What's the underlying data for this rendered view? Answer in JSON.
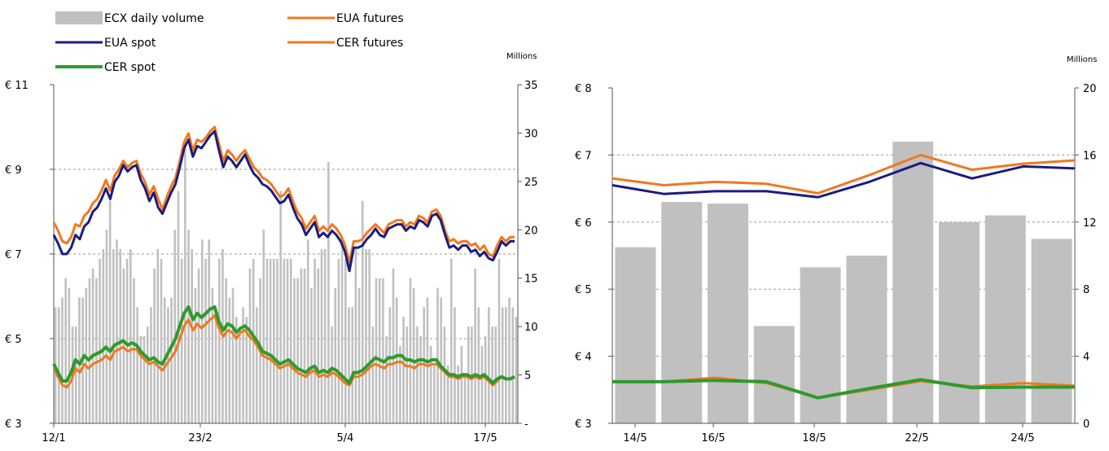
{
  "legend": [
    {
      "label": "ECX daily volume",
      "kind": "bar",
      "color": "#c0c0c0"
    },
    {
      "label": "EUA futures",
      "kind": "line",
      "color": "#f07820"
    },
    {
      "label": "EUA spot",
      "kind": "line",
      "color": "#1c1c80"
    },
    {
      "label": "CER futures",
      "kind": "line",
      "color": "#f07820"
    },
    {
      "label": "CER spot",
      "kind": "line",
      "color": "#2e9a2e"
    }
  ],
  "chart_data": [
    {
      "type": "bar+line",
      "title": "",
      "x_tick_labels": [
        "12/1",
        "23/2",
        "5/4",
        "17/5"
      ],
      "y_left": {
        "ticks": [
          "€ 3",
          "€ 5",
          "€ 7",
          "€ 9",
          "€ 11"
        ],
        "range": [
          3,
          11
        ]
      },
      "y_right": {
        "unit_label": "Millions",
        "ticks": [
          "-",
          "5",
          "10",
          "15",
          "20",
          "25",
          "30",
          "35"
        ],
        "range": [
          0,
          35
        ]
      },
      "grid": "horizontal-dashed",
      "volume_millions": [
        12,
        12,
        13,
        15,
        14,
        10,
        10,
        13,
        13,
        14,
        15,
        16,
        15,
        17,
        18,
        20,
        23,
        18,
        19,
        18,
        16,
        17,
        18,
        15,
        12,
        9,
        9,
        10,
        12,
        16,
        18,
        17,
        13,
        12,
        13,
        20,
        24,
        17,
        29,
        20,
        18,
        14,
        16,
        19,
        17,
        19,
        14,
        12,
        17,
        18,
        15,
        13,
        14,
        11,
        10,
        12,
        11,
        16,
        17,
        12,
        15,
        20,
        17,
        17,
        17,
        17,
        24,
        17,
        17,
        17,
        15,
        15,
        16,
        16,
        19,
        14,
        17,
        16,
        18,
        18,
        27,
        10,
        14,
        17,
        19,
        17,
        12,
        12,
        18,
        14,
        23,
        18,
        18,
        10,
        15,
        15,
        15,
        9,
        12,
        16,
        13,
        8,
        11,
        10,
        15,
        14,
        10,
        9,
        12,
        13,
        8,
        6,
        14,
        13,
        10,
        6,
        17,
        12,
        6,
        8,
        5,
        10,
        10,
        16,
        12,
        8,
        9,
        12,
        10,
        10,
        17,
        12,
        12,
        13,
        12,
        11
      ],
      "series": [
        {
          "name": "EUA futures",
          "color": "#f07820",
          "values": [
            7.75,
            7.55,
            7.3,
            7.25,
            7.4,
            7.7,
            7.65,
            7.9,
            8.0,
            8.2,
            8.3,
            8.5,
            8.75,
            8.5,
            8.85,
            9.0,
            9.2,
            9.05,
            9.15,
            9.2,
            8.9,
            8.7,
            8.4,
            8.6,
            8.3,
            8.05,
            8.35,
            8.6,
            8.8,
            9.2,
            9.65,
            9.85,
            9.45,
            9.7,
            9.65,
            9.75,
            9.9,
            10.0,
            9.6,
            9.2,
            9.45,
            9.35,
            9.2,
            9.35,
            9.45,
            9.25,
            9.05,
            8.95,
            8.8,
            8.75,
            8.65,
            8.5,
            8.35,
            8.4,
            8.55,
            8.25,
            8.0,
            7.85,
            7.6,
            7.75,
            7.9,
            7.55,
            7.65,
            7.55,
            7.7,
            7.6,
            7.45,
            7.2,
            6.8,
            7.3,
            7.3,
            7.35,
            7.5,
            7.6,
            7.7,
            7.6,
            7.5,
            7.7,
            7.75,
            7.8,
            7.8,
            7.65,
            7.75,
            7.7,
            7.9,
            7.85,
            7.75,
            8.0,
            8.05,
            7.9,
            7.55,
            7.3,
            7.35,
            7.25,
            7.3,
            7.3,
            7.2,
            7.25,
            7.1,
            7.2,
            7.0,
            6.95,
            7.2,
            7.4,
            7.3,
            7.4,
            7.4
          ]
        },
        {
          "name": "EUA spot",
          "color": "#1c1c80",
          "values": [
            7.45,
            7.25,
            7.0,
            7.0,
            7.15,
            7.45,
            7.35,
            7.65,
            7.75,
            8.0,
            8.1,
            8.3,
            8.55,
            8.3,
            8.7,
            8.85,
            9.1,
            8.95,
            9.05,
            9.1,
            8.75,
            8.55,
            8.25,
            8.45,
            8.1,
            7.95,
            8.2,
            8.45,
            8.65,
            9.05,
            9.5,
            9.7,
            9.3,
            9.55,
            9.5,
            9.65,
            9.8,
            9.9,
            9.45,
            9.05,
            9.3,
            9.2,
            9.05,
            9.2,
            9.35,
            9.1,
            8.9,
            8.8,
            8.65,
            8.6,
            8.5,
            8.35,
            8.2,
            8.25,
            8.4,
            8.1,
            7.85,
            7.7,
            7.45,
            7.6,
            7.75,
            7.4,
            7.5,
            7.4,
            7.55,
            7.45,
            7.3,
            7.05,
            6.6,
            7.15,
            7.15,
            7.2,
            7.35,
            7.45,
            7.6,
            7.45,
            7.4,
            7.6,
            7.65,
            7.7,
            7.7,
            7.55,
            7.65,
            7.6,
            7.8,
            7.75,
            7.65,
            7.9,
            7.95,
            7.8,
            7.45,
            7.15,
            7.2,
            7.1,
            7.2,
            7.2,
            7.05,
            7.1,
            6.95,
            7.05,
            6.9,
            6.85,
            7.05,
            7.3,
            7.2,
            7.3,
            7.3
          ]
        },
        {
          "name": "CER futures",
          "color": "#f07820",
          "values": [
            4.3,
            4.1,
            3.9,
            3.85,
            4.0,
            4.3,
            4.2,
            4.4,
            4.3,
            4.4,
            4.45,
            4.5,
            4.6,
            4.5,
            4.7,
            4.75,
            4.8,
            4.7,
            4.75,
            4.75,
            4.6,
            4.5,
            4.4,
            4.45,
            4.35,
            4.25,
            4.4,
            4.55,
            4.7,
            5.0,
            5.3,
            5.45,
            5.2,
            5.35,
            5.25,
            5.35,
            5.45,
            5.55,
            5.25,
            5.05,
            5.2,
            5.15,
            5.0,
            5.15,
            5.2,
            5.05,
            4.95,
            4.8,
            4.6,
            4.55,
            4.5,
            4.4,
            4.3,
            4.35,
            4.4,
            4.3,
            4.2,
            4.15,
            4.1,
            4.2,
            4.25,
            4.1,
            4.15,
            4.1,
            4.2,
            4.15,
            4.05,
            3.95,
            3.9,
            4.1,
            4.1,
            4.15,
            4.25,
            4.35,
            4.4,
            4.35,
            4.3,
            4.4,
            4.4,
            4.45,
            4.45,
            4.35,
            4.35,
            4.3,
            4.4,
            4.4,
            4.35,
            4.4,
            4.4,
            4.3,
            4.2,
            4.1,
            4.1,
            4.05,
            4.1,
            4.1,
            4.05,
            4.1,
            4.05,
            4.1,
            4.0,
            3.9,
            4.0,
            4.1,
            4.05,
            4.05,
            4.1
          ]
        },
        {
          "name": "CER spot",
          "color": "#2e9a2e",
          "values": [
            4.4,
            4.2,
            4.0,
            4.0,
            4.2,
            4.5,
            4.4,
            4.6,
            4.5,
            4.6,
            4.65,
            4.7,
            4.8,
            4.7,
            4.85,
            4.9,
            4.95,
            4.85,
            4.9,
            4.85,
            4.7,
            4.6,
            4.5,
            4.55,
            4.45,
            4.4,
            4.6,
            4.8,
            5.0,
            5.3,
            5.6,
            5.75,
            5.45,
            5.6,
            5.5,
            5.6,
            5.7,
            5.75,
            5.4,
            5.2,
            5.35,
            5.3,
            5.15,
            5.25,
            5.3,
            5.2,
            5.05,
            4.9,
            4.7,
            4.65,
            4.6,
            4.5,
            4.4,
            4.45,
            4.5,
            4.4,
            4.3,
            4.25,
            4.2,
            4.3,
            4.35,
            4.2,
            4.25,
            4.2,
            4.3,
            4.25,
            4.15,
            4.05,
            3.95,
            4.2,
            4.2,
            4.25,
            4.35,
            4.45,
            4.55,
            4.5,
            4.45,
            4.55,
            4.55,
            4.6,
            4.6,
            4.5,
            4.5,
            4.45,
            4.5,
            4.5,
            4.45,
            4.5,
            4.5,
            4.35,
            4.25,
            4.15,
            4.15,
            4.1,
            4.15,
            4.15,
            4.1,
            4.15,
            4.1,
            4.15,
            4.05,
            3.95,
            4.05,
            4.1,
            4.05,
            4.05,
            4.1
          ]
        }
      ]
    },
    {
      "type": "bar+line",
      "title": "",
      "x_tick_labels": [
        "14/5",
        "16/5",
        "18/5",
        "22/5",
        "24/5"
      ],
      "y_left": {
        "ticks": [
          "€ 3",
          "€ 4",
          "€ 5",
          "€ 6",
          "€ 7",
          "€ 8"
        ],
        "range": [
          3,
          8
        ]
      },
      "y_right": {
        "unit_label": "Millions",
        "ticks": [
          "0",
          "4",
          "8",
          "12",
          "16",
          "20"
        ],
        "range": [
          0,
          20
        ]
      },
      "grid": "horizontal-dashed",
      "volume_millions": [
        10.5,
        13.2,
        13.1,
        5.8,
        9.3,
        10.0,
        16.8,
        12.0,
        12.4,
        11.0
      ],
      "series": [
        {
          "name": "EUA futures",
          "color": "#f07820",
          "values": [
            6.65,
            6.55,
            6.6,
            6.57,
            6.43,
            6.7,
            7.0,
            6.78,
            6.87,
            6.92
          ]
        },
        {
          "name": "EUA spot",
          "color": "#1c1c80",
          "values": [
            6.55,
            6.42,
            6.46,
            6.46,
            6.37,
            6.6,
            6.88,
            6.65,
            6.83,
            6.8
          ]
        },
        {
          "name": "CER futures",
          "color": "#f07820",
          "values": [
            3.62,
            3.62,
            3.68,
            3.6,
            3.38,
            3.5,
            3.63,
            3.55,
            3.6,
            3.56
          ]
        },
        {
          "name": "CER spot",
          "color": "#2e9a2e",
          "values": [
            3.62,
            3.62,
            3.64,
            3.62,
            3.38,
            3.52,
            3.65,
            3.53,
            3.54,
            3.54
          ]
        }
      ]
    }
  ]
}
